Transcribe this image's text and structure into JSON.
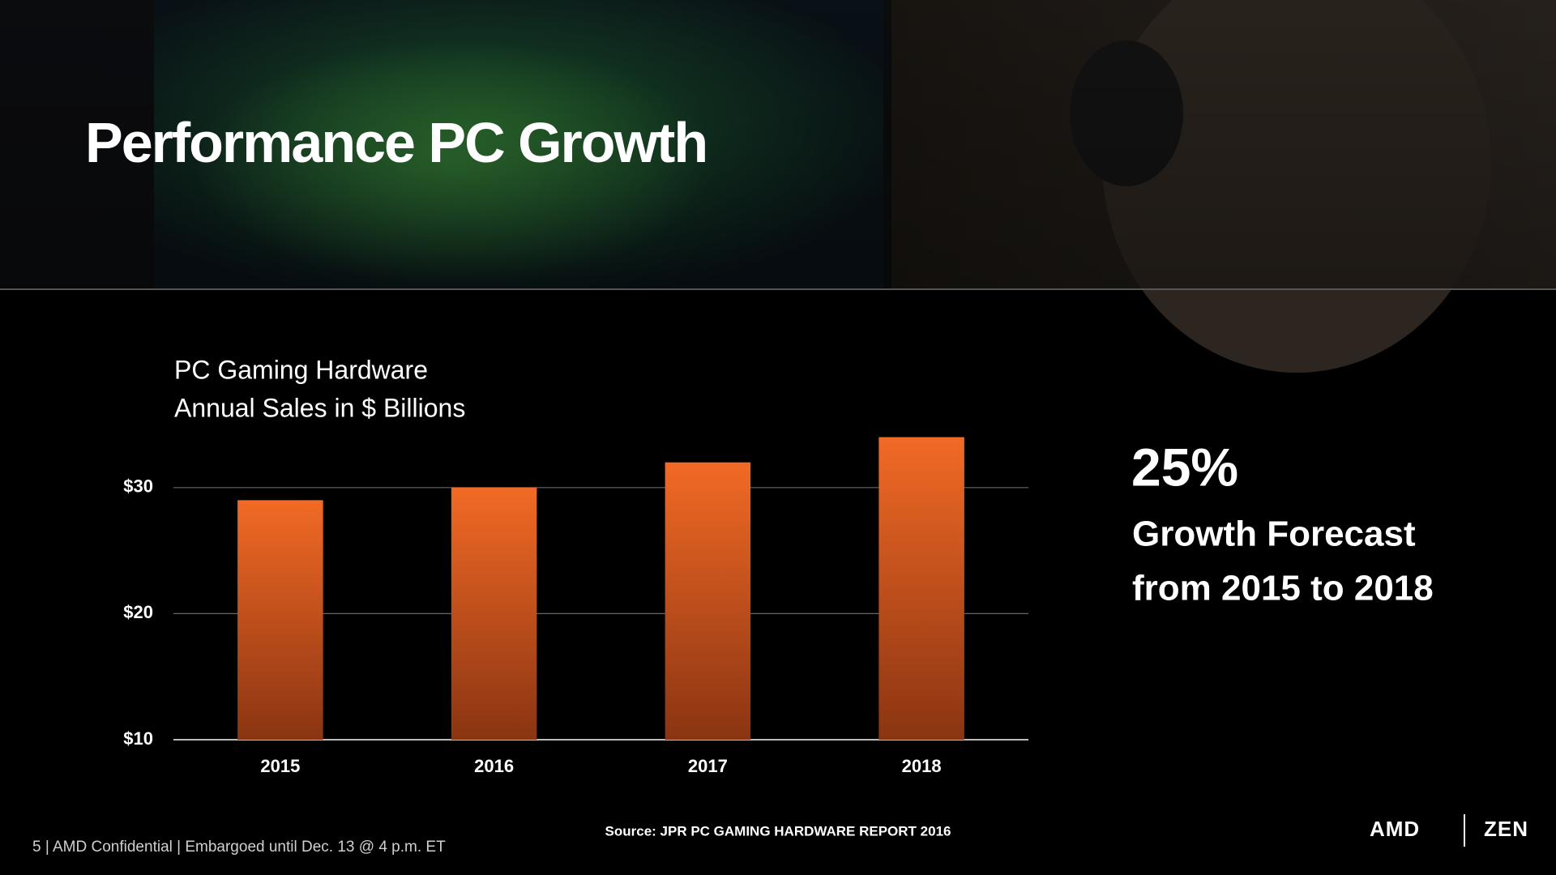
{
  "slide": {
    "title": [
      "Performance",
      "PC Growth"
    ],
    "callout": {
      "figure": "25%",
      "lines": [
        "Growth Forecast",
        "from 2015 to 2018"
      ]
    },
    "source": "Source: JPR PC GAMING HARDWARE REPORT 2016",
    "footer": "5 | AMD Confidential | Embargoed until Dec. 13 @ 4 p.m. ET",
    "logos": [
      "AMD",
      "ZEN"
    ]
  },
  "chart_data": {
    "type": "bar",
    "title": "PC Gaming Hardware",
    "subtitle": "Annual Sales in $ Billions",
    "categories": [
      "2015",
      "2016",
      "2017",
      "2018"
    ],
    "values": [
      29,
      30,
      32,
      34
    ],
    "color": "#f26a25",
    "ylim": [
      10,
      35
    ],
    "yticks": [
      {
        "value": 10,
        "label": "$10"
      },
      {
        "value": 20,
        "label": "$20"
      },
      {
        "value": 30,
        "label": "$30"
      }
    ],
    "grid": true
  }
}
